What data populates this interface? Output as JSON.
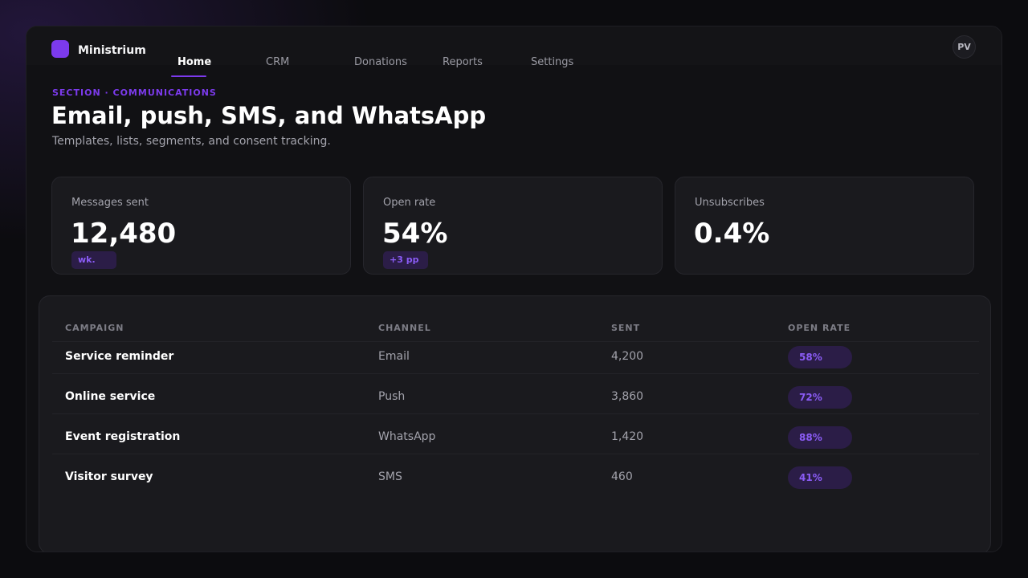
{
  "app": {
    "brand": "Ministrium",
    "user_initials": "PV"
  },
  "nav": {
    "items": [
      {
        "label": "Home",
        "active": true
      },
      {
        "label": "CRM",
        "active": false
      },
      {
        "label": "Donations",
        "active": false
      },
      {
        "label": "Reports",
        "active": false
      },
      {
        "label": "Settings",
        "active": false
      }
    ]
  },
  "header": {
    "eyebrow": "SECTION · COMMUNICATIONS",
    "title": "Email, push, SMS, and WhatsApp",
    "subtitle": "Templates, lists, segments, and consent tracking."
  },
  "stats": [
    {
      "label": "Messages sent",
      "value": "12,480",
      "badge": "wk."
    },
    {
      "label": "Open rate",
      "value": "54%",
      "badge": "+3 pp"
    },
    {
      "label": "Unsubscribes",
      "value": "0.4%",
      "badge": ""
    }
  ],
  "table": {
    "columns": [
      "CAMPAIGN",
      "CHANNEL",
      "SENT",
      "OPEN RATE"
    ],
    "rows": [
      {
        "campaign": "Service reminder",
        "channel": "Email",
        "sent": "4,200",
        "open_rate": "58%"
      },
      {
        "campaign": "Online service",
        "channel": "Push",
        "sent": "3,860",
        "open_rate": "72%"
      },
      {
        "campaign": "Event registration",
        "channel": "WhatsApp",
        "sent": "1,420",
        "open_rate": "88%"
      },
      {
        "campaign": "Visitor survey",
        "channel": "SMS",
        "sent": "460",
        "open_rate": "41%"
      }
    ]
  },
  "colors": {
    "accent": "#7c3aed",
    "background": "#0c0c0f",
    "surface": "#1a1a1e",
    "pill_bg": "#2b1d47",
    "pill_text": "#8b5cf6"
  }
}
